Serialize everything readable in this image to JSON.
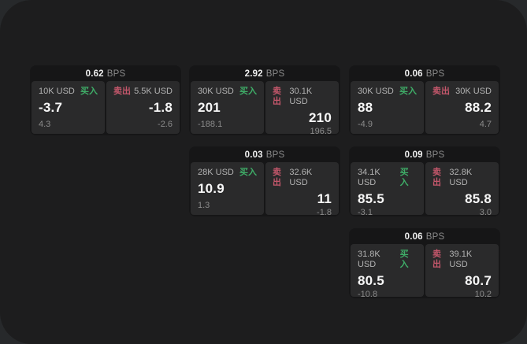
{
  "labels": {
    "unit": "BPS",
    "buy": "买入",
    "sell": "卖出"
  },
  "colors": {
    "buy_green": "#3fae68",
    "sell_red": "#c4576b",
    "window_bg": "#1d1d1e",
    "card_bg": "#161617",
    "tile_bg": "#2a2a2b"
  },
  "cards": [
    {
      "spread": "0.62",
      "grid": {
        "row": 0,
        "col": 0
      },
      "buy": {
        "amount": "10K USD",
        "price": "-3.7",
        "change": "4.3"
      },
      "sell": {
        "amount": "5.5K USD",
        "price": "-1.8",
        "change": "-2.6"
      }
    },
    {
      "spread": "2.92",
      "grid": {
        "row": 0,
        "col": 1
      },
      "buy": {
        "amount": "30K USD",
        "price": "201",
        "change": "-188.1"
      },
      "sell": {
        "amount": "30.1K USD",
        "price": "210",
        "change": "196.5"
      }
    },
    {
      "spread": "0.06",
      "grid": {
        "row": 0,
        "col": 2
      },
      "buy": {
        "amount": "30K USD",
        "price": "88",
        "change": "-4.9"
      },
      "sell": {
        "amount": "30K USD",
        "price": "88.2",
        "change": "4.7"
      }
    },
    {
      "spread": "0.03",
      "grid": {
        "row": 1,
        "col": 1
      },
      "buy": {
        "amount": "28K USD",
        "price": "10.9",
        "change": "1.3"
      },
      "sell": {
        "amount": "32.6K USD",
        "price": "11",
        "change": "-1.8"
      }
    },
    {
      "spread": "0.09",
      "grid": {
        "row": 1,
        "col": 2
      },
      "buy": {
        "amount": "34.1K USD",
        "price": "85.5",
        "change": "-3.1"
      },
      "sell": {
        "amount": "32.8K USD",
        "price": "85.8",
        "change": "3.0"
      }
    },
    {
      "spread": "0.06",
      "grid": {
        "row": 2,
        "col": 2
      },
      "buy": {
        "amount": "31.8K USD",
        "price": "80.5",
        "change": "-10.8"
      },
      "sell": {
        "amount": "39.1K USD",
        "price": "80.7",
        "change": "10.2"
      }
    }
  ]
}
